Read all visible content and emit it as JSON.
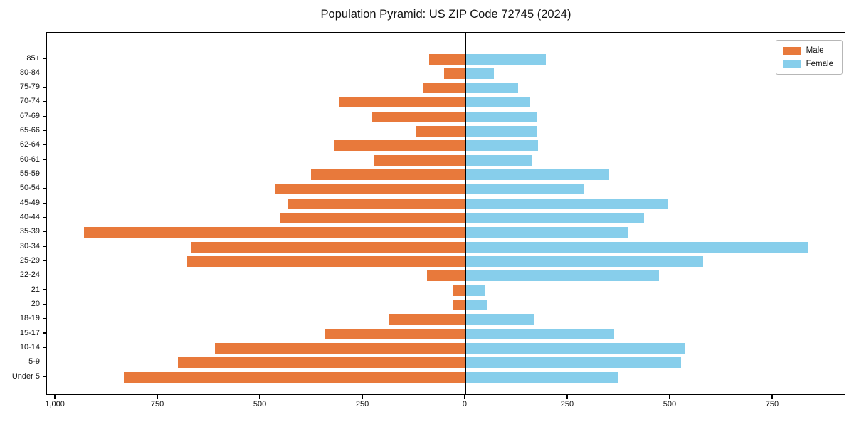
{
  "title": "Population Pyramid: US ZIP Code 72745 (2024)",
  "legend": {
    "male_label": "Male",
    "female_label": "Female",
    "position": "upper right"
  },
  "colors": {
    "male": "#e8793b",
    "female": "#87ceeb",
    "axis": "#000000",
    "background": "#ffffff"
  },
  "chart_data": {
    "type": "bar",
    "subtype": "population-pyramid",
    "orientation": "horizontal",
    "title": "Population Pyramid: US ZIP Code 72745 (2024)",
    "xlabel": "",
    "ylabel": "",
    "grid": false,
    "legend_position": "upper right",
    "xlim": [
      -1021,
      929
    ],
    "categories_top_to_bottom": [
      "85+",
      "80-84",
      "75-79",
      "70-74",
      "67-69",
      "65-66",
      "62-64",
      "60-61",
      "55-59",
      "50-54",
      "45-49",
      "40-44",
      "35-39",
      "30-34",
      "25-29",
      "22-24",
      "21",
      "20",
      "18-19",
      "15-17",
      "10-14",
      "5-9",
      "Under 5"
    ],
    "series": [
      {
        "name": "Male",
        "side": "left",
        "color": "#e8793b",
        "values": [
          88,
          52,
          104,
          309,
          228,
          120,
          319,
          222,
          377,
          465,
          432,
          453,
          930,
          670,
          679,
          94,
          30,
          30,
          186,
          342,
          611,
          701,
          833
        ]
      },
      {
        "name": "Female",
        "side": "right",
        "color": "#87ceeb",
        "values": [
          196,
          70,
          128,
          158,
          174,
          174,
          177,
          163,
          351,
          290,
          495,
          436,
          398,
          836,
          580,
          472,
          47,
          52,
          167,
          363,
          535,
          526,
          372
        ]
      }
    ],
    "x_tick_values": [
      -1000,
      -750,
      -500,
      -250,
      0,
      250,
      500,
      750
    ],
    "x_tick_labels": [
      "1,000",
      "750",
      "500",
      "250",
      "0",
      "250",
      "500",
      "750"
    ]
  }
}
